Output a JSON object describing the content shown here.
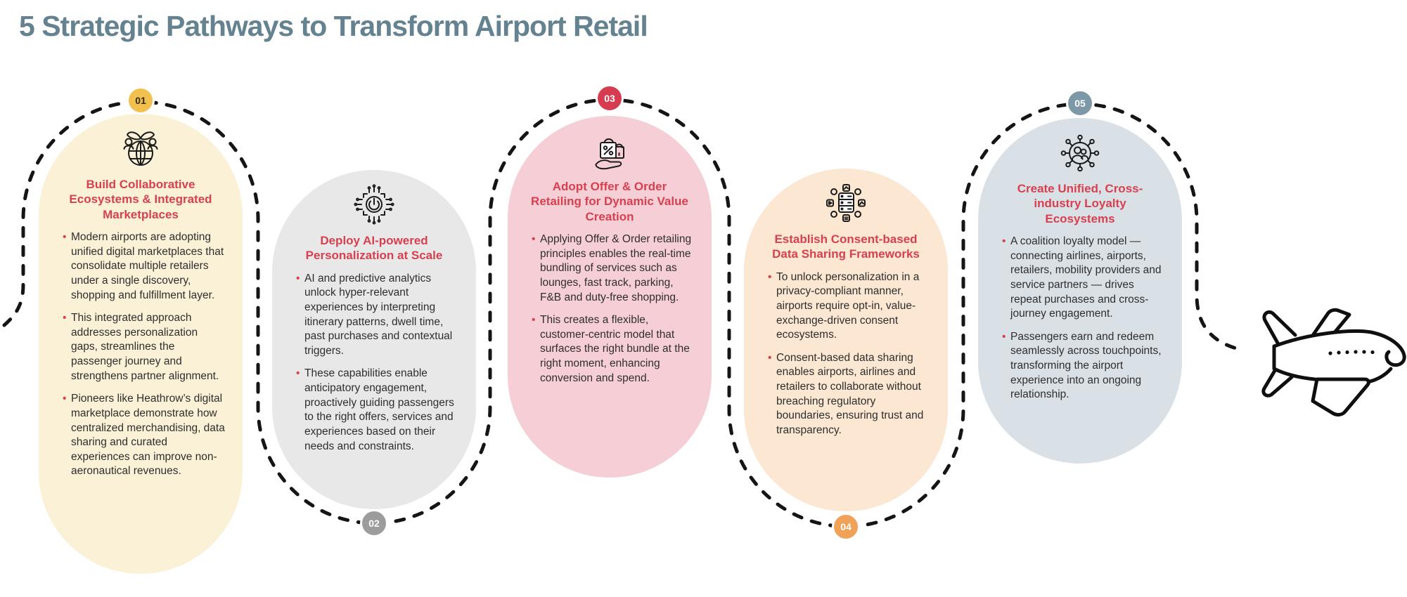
{
  "title": "5 Strategic Pathways to Transform Airport Retail",
  "colors": {
    "title": "#64828F",
    "heading": "#D6404F",
    "bullet": "#D6404F",
    "body_text": "#2E2E2E",
    "dash_line": "#151515"
  },
  "bullet_glyph": "•",
  "icons": {
    "journey": "dashed-journey-path",
    "plane": "airplane-icon"
  },
  "cards": [
    {
      "number": "01",
      "icon": "collaboration-globe-icon",
      "badge_color": "#F1C04F",
      "badge_text_color": "#33290F",
      "bg_color": "#FBF1D7",
      "heading": "Build Collaborative Ecosystems & Integrated Marketplaces",
      "bullets": [
        "Modern airports are adopting unified digital marketplaces that consolidate multiple retailers under a single discovery, shopping and fulfillment layer.",
        "This integrated approach addresses personalization gaps, streamlines the passenger journey and strengthens partner alignment.",
        "Pioneers like Heathrow’s digital marketplace demonstrate how centralized merchandising, data sharing and curated experiences can improve non-aeronautical revenues."
      ]
    },
    {
      "number": "02",
      "icon": "ai-chip-icon",
      "badge_color": "#9C9C9C",
      "badge_text_color": "#FFFFFF",
      "bg_color": "#E8E8E8",
      "heading": "Deploy AI-powered Personalization at Scale",
      "bullets": [
        "AI and predictive analytics unlock hyper-relevant experiences by interpreting itinerary patterns, dwell time, past purchases and contextual triggers.",
        "These capabilities enable anticipatory engagement, proactively guiding passengers to the right offers, services and experiences based on their needs and constraints."
      ]
    },
    {
      "number": "03",
      "icon": "offer-order-bag-icon",
      "badge_color": "#D63B4F",
      "badge_text_color": "#FFFFFF",
      "bg_color": "#F6CFD6",
      "heading": "Adopt Offer & Order Retailing for Dynamic Value Creation",
      "bullets": [
        "Applying Offer & Order retailing principles enables the real-time bundling of services such as lounges, fast track, parking, F&B and duty-free shopping.",
        "This creates a flexible, customer-centric model that surfaces the right bundle at the right moment, enhancing conversion and spend."
      ]
    },
    {
      "number": "04",
      "icon": "data-sharing-server-icon",
      "badge_color": "#F0A259",
      "badge_text_color": "#FFFFFF",
      "bg_color": "#FBE7D2",
      "heading": "Establish Consent-based Data Sharing Frameworks",
      "bullets": [
        "To unlock personalization in a privacy-compliant manner, airports require opt-in, value-exchange-driven consent ecosystems.",
        "Consent-based data sharing enables airports, airlines and retailers to collaborate without breaching regulatory boundaries, ensuring trust and transparency."
      ]
    },
    {
      "number": "05",
      "icon": "loyalty-network-icon",
      "badge_color": "#7D98A7",
      "badge_text_color": "#FFFFFF",
      "bg_color": "#DAE1E6",
      "heading": "Create Unified, Cross-industry Loyalty Ecosystems",
      "bullets": [
        "A coalition loyalty model — connecting airlines, airports, retailers, mobility providers and service partners — drives repeat purchases and cross-journey engagement.",
        "Passengers earn and redeem seamlessly across touchpoints, transforming the airport experience into an ongoing relationship."
      ]
    }
  ]
}
